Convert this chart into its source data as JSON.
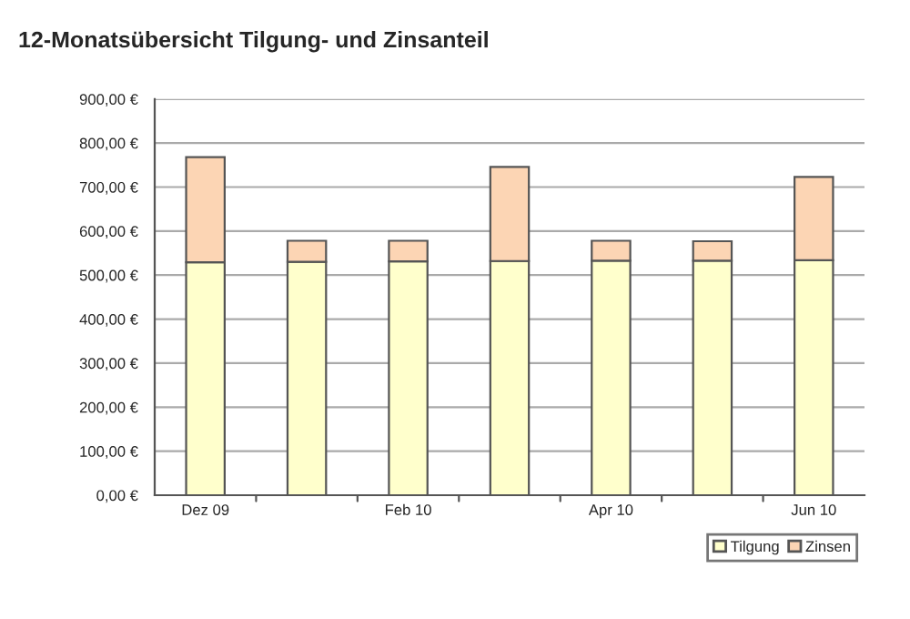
{
  "chart_data": {
    "type": "bar",
    "title": "12-Monatsübersicht Tilgung- und Zinsanteil",
    "categories": [
      "Dez 09",
      null,
      "Feb 10",
      null,
      "Apr 10",
      null,
      "Jun 10"
    ],
    "stacked": true,
    "series": [
      {
        "name": "Tilgung",
        "color": "#ffffcc",
        "values": [
          529,
          530,
          531,
          532,
          533,
          533,
          534
        ]
      },
      {
        "name": "Zinsen",
        "color": "#fcd5b4",
        "values": [
          239,
          48,
          47,
          214,
          45,
          44,
          189
        ]
      }
    ],
    "ylim": [
      0,
      900
    ],
    "yticks": [
      {
        "value": 0,
        "label": "0,00 €"
      },
      {
        "value": 100,
        "label": "100,00 €"
      },
      {
        "value": 200,
        "label": "200,00 €"
      },
      {
        "value": 300,
        "label": "300,00 €"
      },
      {
        "value": 400,
        "label": "400,00 €"
      },
      {
        "value": 500,
        "label": "500,00 €"
      },
      {
        "value": 600,
        "label": "600,00 €"
      },
      {
        "value": 700,
        "label": "700,00 €"
      },
      {
        "value": 800,
        "label": "800,00 €"
      },
      {
        "value": 900,
        "label": "900,00 €"
      }
    ],
    "grid": "y",
    "legend": "bottom right"
  }
}
